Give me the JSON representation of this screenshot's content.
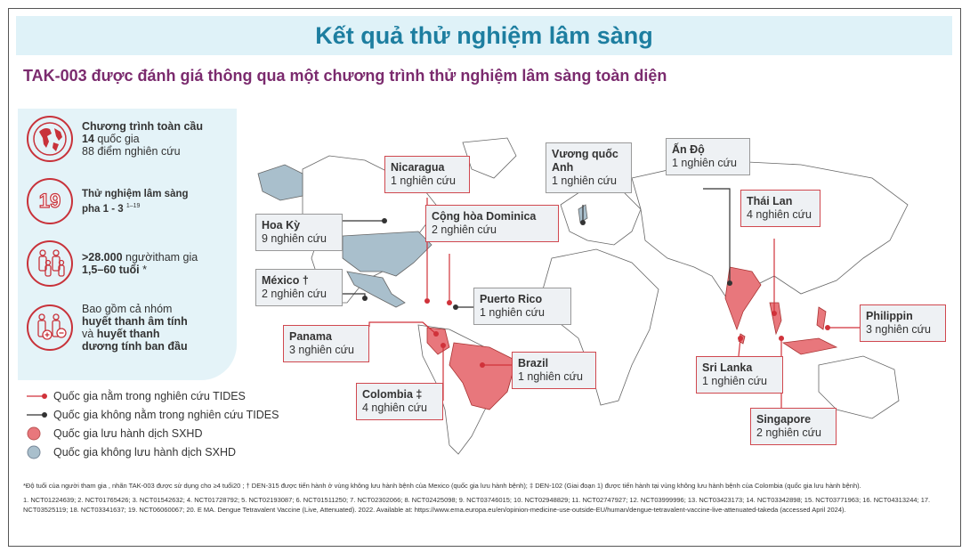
{
  "title": "Kết quả thử nghiệm lâm sàng",
  "subtitle": "TAK-003 được đánh giá thông qua một chương trình thử nghiệm lâm sàng toàn diện",
  "stats": [
    {
      "icon": "globe-icon",
      "line1": "Chương trình toàn cầu",
      "line2_bold": "14",
      "line2": " quốc gia",
      "line3": "88 điểm nghiên cứu"
    },
    {
      "icon": "number-19-icon",
      "number": "19",
      "line1": "Thử nghiệm lâm sàng",
      "line2": "pha 1 - 3 ",
      "sup": "1–19"
    },
    {
      "icon": "people-icon",
      "bold1": ">28.000",
      "line1": " ngườitham gia",
      "line2": "1,5–60 tuổi",
      "sup": " *"
    },
    {
      "icon": "serostatus-icon",
      "line1": "Bao gồm cả nhóm",
      "bold2": "huyết thanh âm tính",
      "line3a": "và ",
      "bold3": "huyết thanh",
      "bold4": "dương tính ban đầu"
    }
  ],
  "legend": [
    "Quốc gia nằm trong nghiên cứu TIDES",
    "Quốc gia không nằm trong nghiên cứu TIDES",
    "Quốc gia lưu hành dịch SXHD",
    "Quốc gia không lưu hành dịch SXHD"
  ],
  "colors": {
    "endemic": "#e8777c",
    "non_endemic": "#a9bfcc",
    "tides": "#d0323a",
    "non_tides": "#333333",
    "title": "#1d7ea0",
    "subtitle": "#7b2b6e"
  },
  "countries": [
    {
      "name": "Nicaragua",
      "studies": "1 nghiên cứu",
      "tides": true
    },
    {
      "name": "Vương quốc Anh",
      "studies": "1 nghiên cứu",
      "tides": false
    },
    {
      "name": "Ấn Độ",
      "studies": "1 nghiên cứu",
      "tides": false
    },
    {
      "name": "Thái Lan",
      "studies": "4 nghiên cứu",
      "tides": true
    },
    {
      "name": "Hoa Kỳ",
      "studies": "9 nghiên cứu",
      "tides": false
    },
    {
      "name": "Cộng hòa Dominica",
      "studies": "2 nghiên cứu",
      "tides": true
    },
    {
      "name": "México †",
      "studies": "2 nghiên cứu",
      "tides": false
    },
    {
      "name": "Puerto Rico",
      "studies": "1 nghiên cứu",
      "tides": false
    },
    {
      "name": "Panama",
      "studies": "3 nghiên cứu",
      "tides": true
    },
    {
      "name": "Philippin",
      "studies": "3 nghiên cứu",
      "tides": true
    },
    {
      "name": "Brazil",
      "studies": "1 nghiên cứu",
      "tides": true
    },
    {
      "name": "Sri Lanka",
      "studies": "1 nghiên cứu",
      "tides": true
    },
    {
      "name": "Colombia ‡",
      "studies": "4 nghiên cứu",
      "tides": true
    },
    {
      "name": "Singapore",
      "studies": "2 nghiên cứu",
      "tides": true
    }
  ],
  "footnotes": {
    "note": "*Độ tuổi của người tham gia , nhãn TAK-003 được sử dụng cho ≥4 tuổi20 ; † DEN-315 được tiến hành ở vùng không lưu hành bệnh của Mexico (quốc gia lưu hành bệnh); ‡ DEN-102 (Giai đoạn 1) được tiến hành tại vùng không lưu hành bệnh của Colombia (quốc gia lưu hành bệnh).",
    "refs": "1. NCT01224639; 2. NCT01765426; 3. NCT01542632; 4. NCT01728792; 5. NCT02193087; 6. NCT01511250; 7. NCT02302066; 8. NCT02425098; 9. NCT03746015; 10. NCT02948829; 11. NCT02747927; 12. NCT03999996; 13. NCT03423173; 14. NCT03342898; 15. NCT03771963; 16. NCT04313244; 17. NCT03525119; 18. NCT03341637; 19. NCT06060067; 20. E MA. Dengue Tetravalent Vaccine (Live, Attenuated). 2022. Available at: https://www.ema.europa.eu/en/opinion-medicine-use-outside-EU/human/dengue-tetravalent-vaccine-live-attenuated-takeda (accessed April 2024)."
  }
}
